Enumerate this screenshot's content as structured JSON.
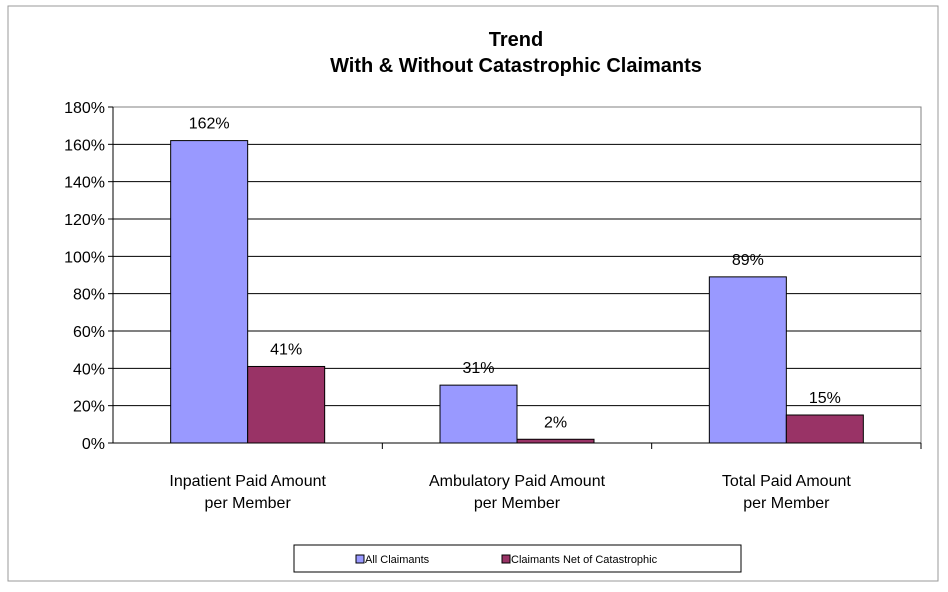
{
  "chart_data": {
    "type": "bar",
    "title": [
      "Trend",
      "With & Without Catastrophic Claimants"
    ],
    "categories": [
      [
        "Inpatient Paid Amount",
        "per Member"
      ],
      [
        "Ambulatory Paid Amount",
        "per Member"
      ],
      [
        "Total Paid Amount",
        "per Member"
      ]
    ],
    "series": [
      {
        "name": "All Claimants",
        "values": [
          162,
          31,
          89
        ],
        "color": "#9999FF"
      },
      {
        "name": "Claimants Net of Catastrophic",
        "values": [
          41,
          2,
          15
        ],
        "color": "#993366"
      }
    ],
    "data_labels": [
      [
        "162%",
        "31%",
        "89%"
      ],
      [
        "41%",
        "2%",
        "15%"
      ]
    ],
    "ylim": [
      0,
      180
    ],
    "yticks": [
      0,
      20,
      40,
      60,
      80,
      100,
      120,
      140,
      160,
      180
    ],
    "ytick_labels": [
      "0%",
      "20%",
      "40%",
      "60%",
      "80%",
      "100%",
      "120%",
      "140%",
      "160%",
      "180%"
    ],
    "grid": true,
    "legend_position": "bottom"
  }
}
